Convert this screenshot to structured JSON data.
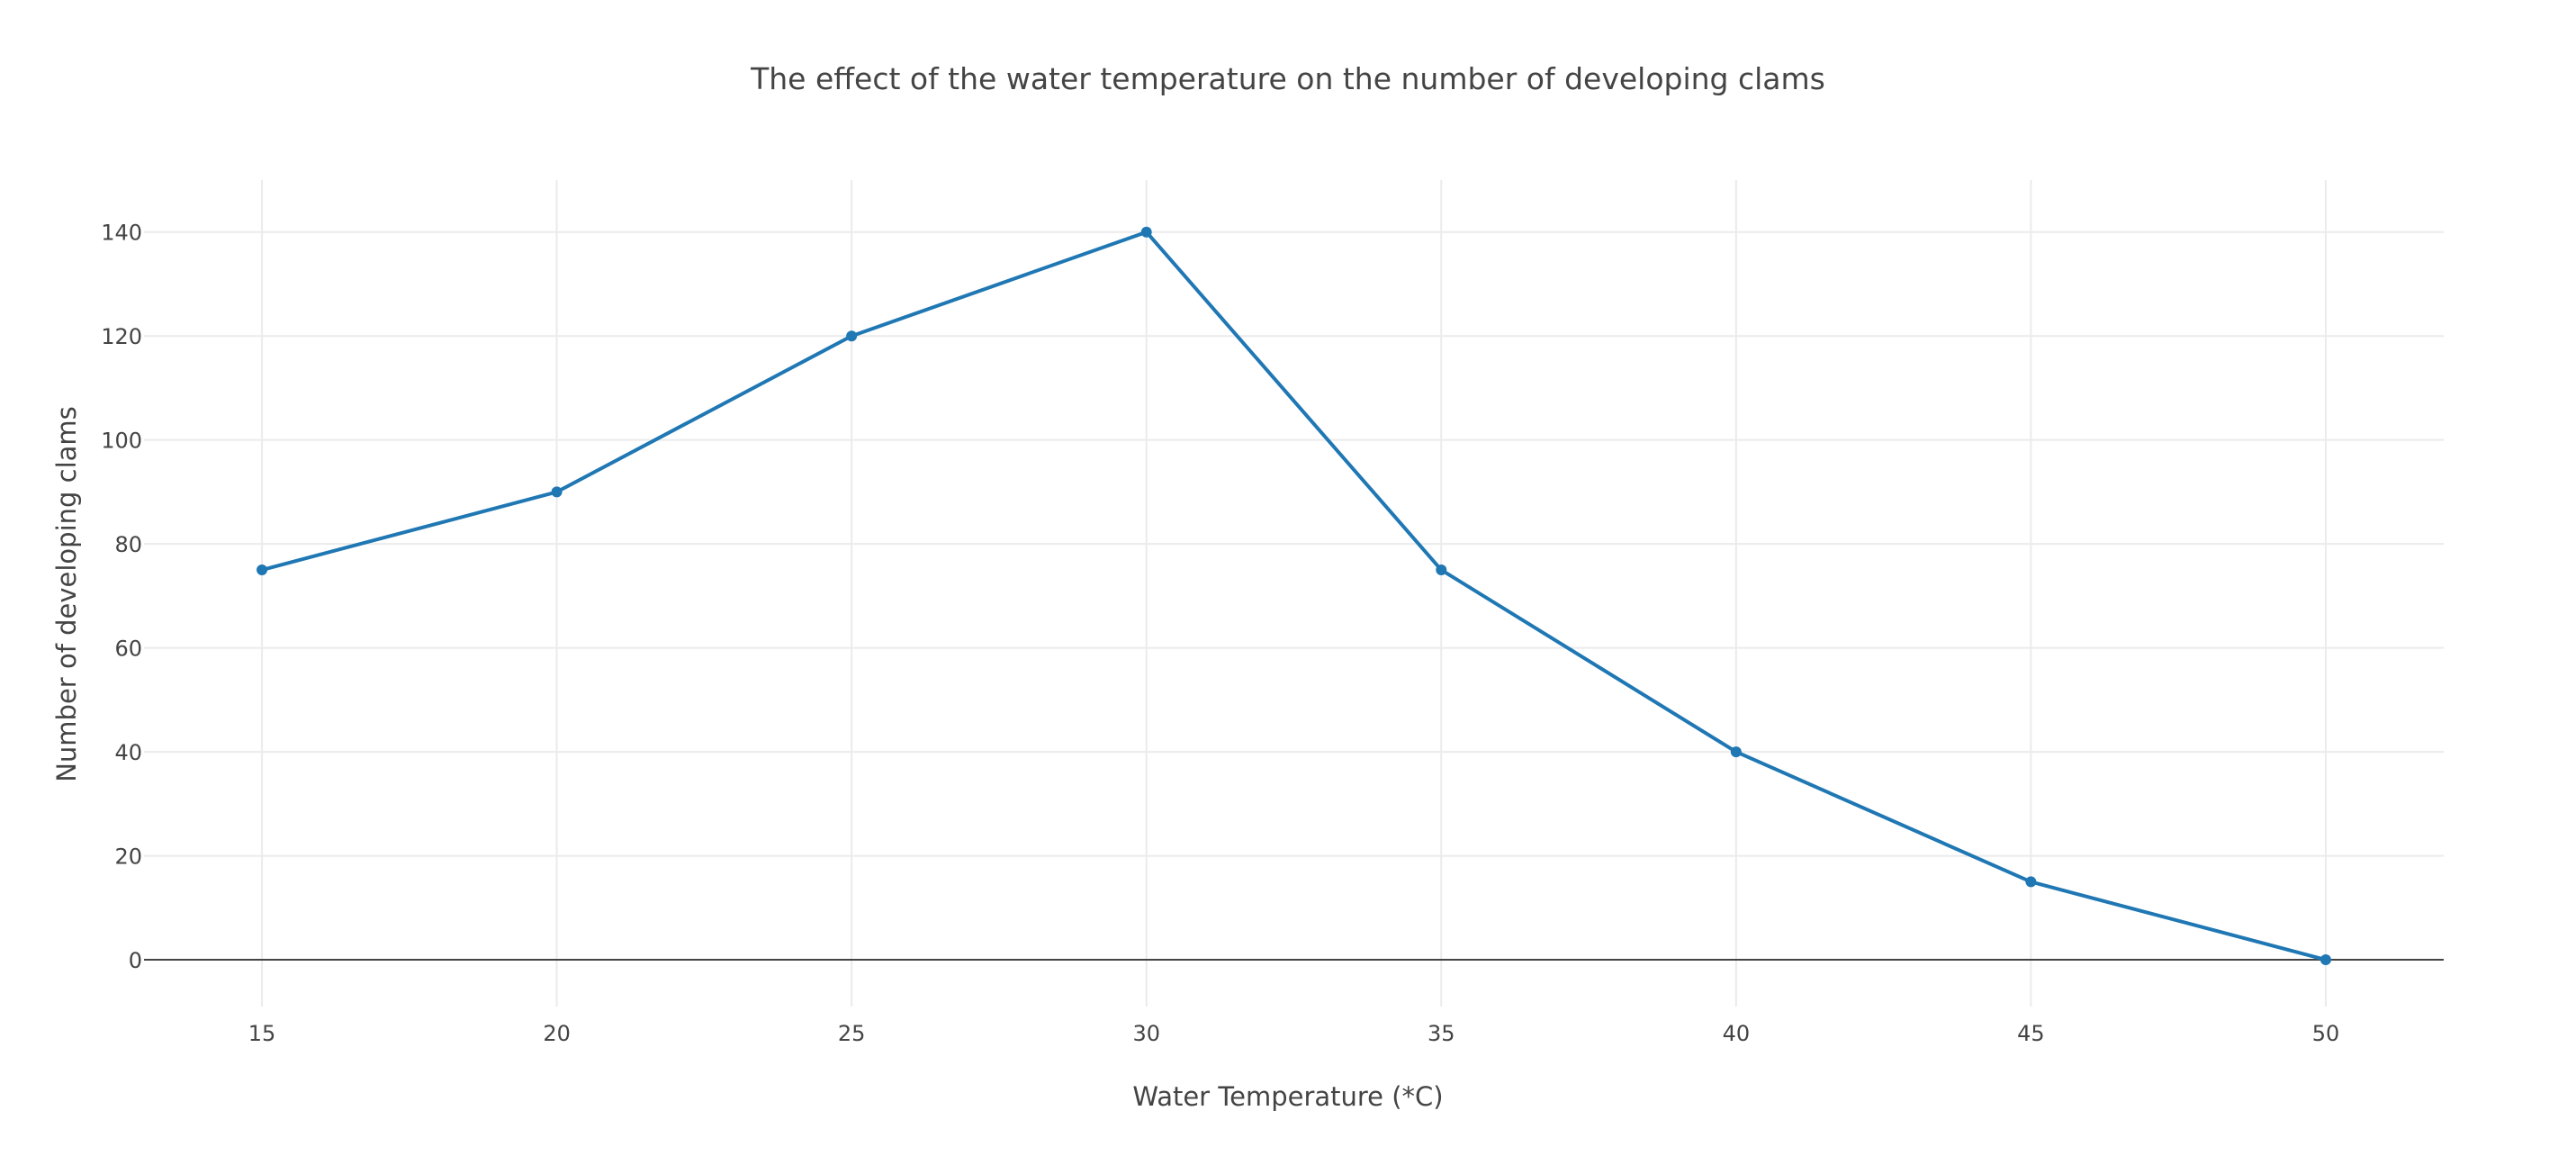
{
  "chart_data": {
    "type": "line",
    "title": "The effect of the water temperature on the number of developing clams",
    "xlabel": "Water Temperature (*C)",
    "ylabel": "Number of developing clams",
    "x": [
      15,
      20,
      25,
      30,
      35,
      40,
      45,
      50
    ],
    "series": [
      {
        "values": [
          75,
          90,
          120,
          140,
          75,
          40,
          15,
          0
        ]
      }
    ],
    "xlim": [
      13,
      52
    ],
    "ylim": [
      -9,
      150
    ],
    "xticks": [
      15,
      20,
      25,
      30,
      35,
      40,
      45,
      50
    ],
    "yticks": [
      0,
      20,
      40,
      60,
      80,
      100,
      120,
      140
    ],
    "grid": true,
    "markers": true,
    "colors": {
      "series": "#1f77b4"
    }
  }
}
